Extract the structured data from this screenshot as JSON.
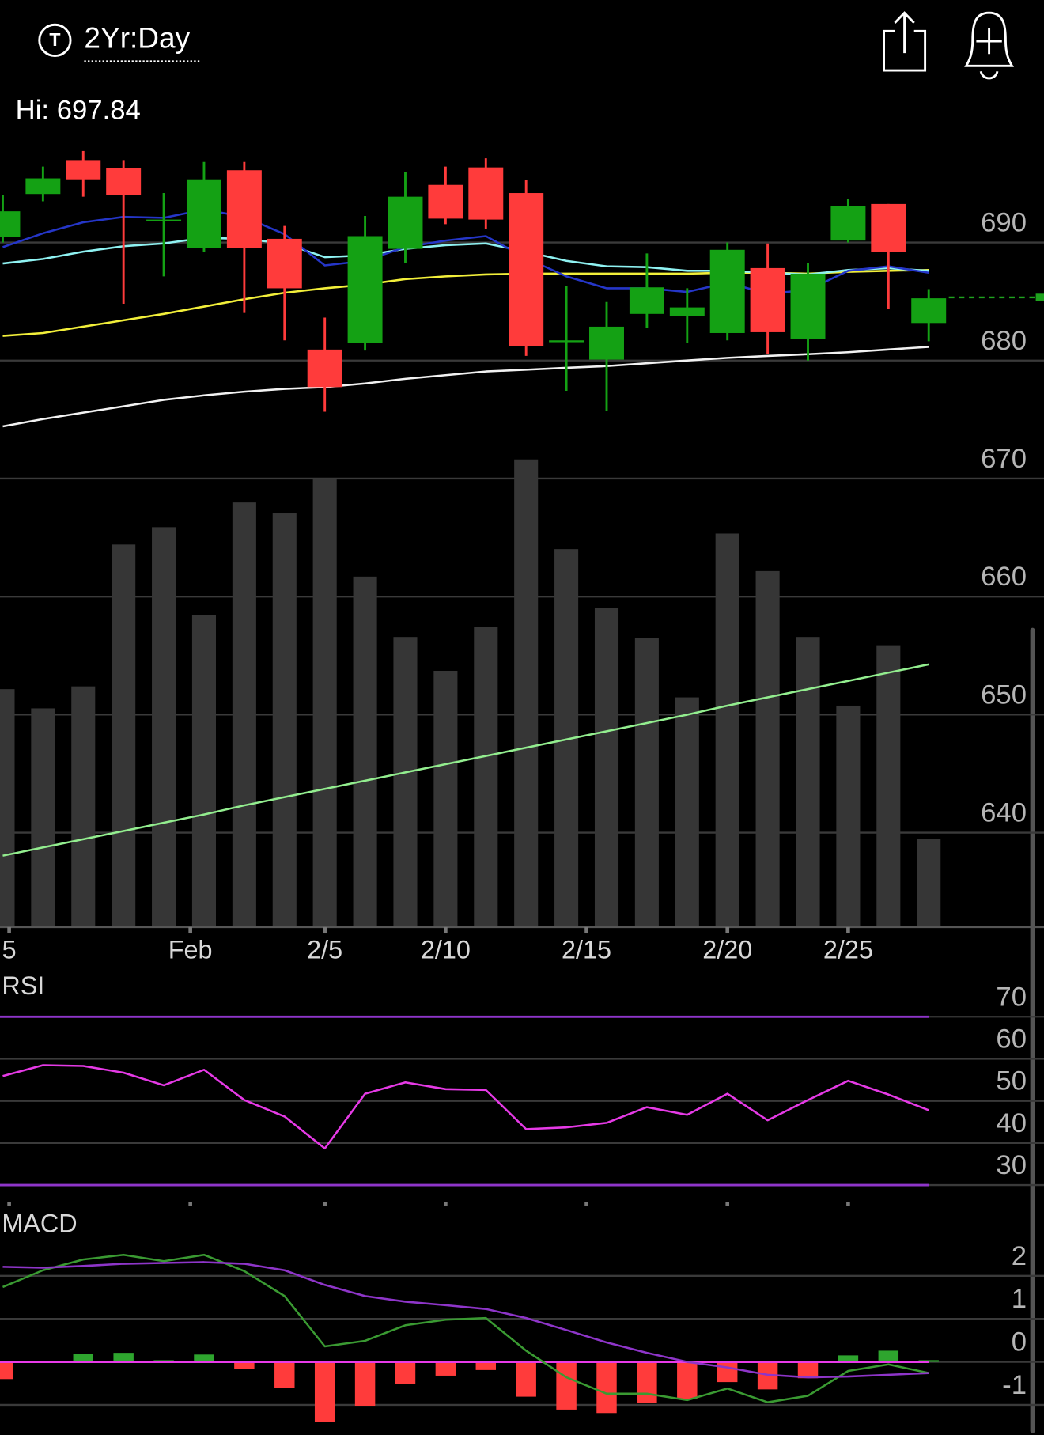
{
  "header": {
    "badge": "T",
    "range": "2Yr:Day",
    "high_label": "Hi: 697.84"
  },
  "chart_data": [
    {
      "type": "candlestick",
      "xlim": [
        -0.068,
        25.864
      ],
      "xticks": [
        {
          "value": 0.16,
          "label": "5"
        },
        {
          "value": 4.66,
          "label": "Feb"
        },
        {
          "value": 8,
          "label": "2/5"
        },
        {
          "value": 11,
          "label": "2/10"
        },
        {
          "value": 14.5,
          "label": "2/15"
        },
        {
          "value": 18,
          "label": "2/20"
        },
        {
          "value": 21,
          "label": "2/25"
        }
      ],
      "ylim": [
        632,
        700
      ],
      "yticks": [
        640,
        650,
        660,
        670,
        680,
        690
      ],
      "up_color": "#14a114",
      "down_color": "#ff3b3b",
      "open": [
        690.47,
        694.11,
        696.98,
        696.28,
        691.78,
        689.53,
        696.12,
        690.31,
        680.93,
        681.47,
        689.46,
        694.88,
        696.36,
        694.19,
        681.63,
        680.08,
        683.95,
        683.8,
        682.33,
        687.83,
        681.86,
        690.16,
        693.26,
        683.18
      ],
      "high": [
        694.0,
        696.43,
        697.75,
        696.98,
        694.19,
        696.82,
        696.82,
        691.4,
        683.64,
        692.25,
        695.97,
        696.43,
        697.13,
        695.27,
        686.28,
        684.96,
        689.07,
        686.12,
        690.0,
        689.92,
        688.29,
        693.72,
        693.26,
        686.05
      ],
      "low": [
        690.0,
        693.49,
        693.88,
        684.81,
        687.13,
        689.22,
        684.03,
        681.71,
        675.66,
        680.85,
        688.29,
        691.55,
        691.16,
        680.39,
        677.44,
        675.74,
        682.79,
        681.47,
        681.71,
        680.54,
        680.0,
        690.0,
        684.34,
        681.63
      ],
      "close": [
        692.64,
        695.43,
        695.35,
        694.03,
        691.94,
        695.35,
        689.53,
        686.12,
        677.75,
        690.54,
        693.88,
        692.02,
        691.94,
        681.24,
        681.71,
        682.87,
        686.2,
        684.5,
        689.38,
        682.4,
        687.36,
        693.1,
        689.22,
        685.27
      ],
      "series": [
        {
          "color": "#f2f2f2",
          "values": [
            674.42,
            675.04,
            675.58,
            676.12,
            676.67,
            677.05,
            677.36,
            677.6,
            677.75,
            678.06,
            678.45,
            678.76,
            679.07,
            679.22,
            679.38,
            679.53,
            679.77,
            680.0,
            680.23,
            680.39,
            680.54,
            680.7,
            680.93,
            681.16
          ]
        },
        {
          "color": "#f2ef3a",
          "values": [
            682.09,
            682.33,
            682.87,
            683.41,
            683.95,
            684.57,
            685.19,
            685.74,
            686.12,
            686.43,
            686.9,
            687.13,
            687.29,
            687.36,
            687.36,
            687.36,
            687.36,
            687.36,
            687.44,
            687.44,
            687.36,
            687.52,
            687.6,
            687.67
          ]
        },
        {
          "color": "#8ff2f2",
          "values": [
            688.22,
            688.6,
            689.22,
            689.69,
            689.92,
            690.39,
            690.31,
            689.92,
            688.76,
            688.91,
            689.46,
            689.77,
            689.92,
            689.22,
            688.45,
            687.98,
            687.91,
            687.6,
            687.6,
            687.44,
            687.29,
            687.67,
            687.83,
            687.6
          ]
        },
        {
          "color": "#2536c8",
          "values": [
            689.61,
            690.78,
            691.71,
            692.17,
            692.09,
            692.79,
            692.17,
            690.7,
            688.06,
            688.45,
            689.61,
            690.16,
            690.54,
            688.68,
            687.13,
            686.12,
            686.12,
            685.81,
            686.59,
            685.66,
            685.97,
            687.6,
            687.98,
            687.44
          ]
        }
      ],
      "volume": {
        "color": "#363636",
        "values": [
          260,
          239,
          263,
          418,
          437,
          341,
          464,
          452,
          490,
          383,
          317,
          280,
          328,
          511,
          413,
          349,
          316,
          251,
          430,
          389,
          317,
          242,
          308,
          96
        ],
        "ma": {
          "color": "#93ee8f",
          "values": [
            78,
            87,
            96,
            105,
            114,
            123,
            133,
            142,
            151,
            160,
            169,
            178,
            187,
            196,
            205,
            214,
            223,
            232,
            242,
            251,
            260,
            269,
            278,
            287
          ]
        }
      },
      "last_price": {
        "value": 685.35,
        "color": "#1ea31e"
      }
    },
    {
      "type": "line",
      "title": "RSI",
      "ylim": [
        26.5,
        80
      ],
      "yticks": [
        30,
        40,
        50,
        60,
        70
      ],
      "levels": [
        70,
        30
      ],
      "level_color": "#8e35c9",
      "series": [
        {
          "color": "#e63ae6",
          "values": [
            55.9,
            58.5,
            58.3,
            56.7,
            53.7,
            57.4,
            50.2,
            46.3,
            38.7,
            51.7,
            54.4,
            52.8,
            52.6,
            43.3,
            43.7,
            44.8,
            48.5,
            46.7,
            51.7,
            45.4,
            50.2,
            54.8,
            51.5,
            47.8
          ]
        }
      ]
    },
    {
      "type": "line",
      "title": "MACD",
      "ylim": [
        -1.7,
        3.47
      ],
      "yticks": [
        -1,
        0,
        1,
        2
      ],
      "zero_line_color": "#e83ae8",
      "up_color": "#2ea52e",
      "down_color": "#ff3b3b",
      "histogram": [
        -0.4,
        null,
        0.19,
        0.21,
        0.04,
        0.17,
        -0.17,
        -0.6,
        -1.4,
        -1.02,
        -0.51,
        -0.32,
        -0.19,
        -0.81,
        -1.11,
        -1.19,
        -0.96,
        -0.87,
        -0.47,
        -0.64,
        -0.38,
        0.15,
        0.26,
        0.04
      ],
      "series": [
        {
          "color": "#3a9a32",
          "values": [
            1.74,
            2.13,
            2.38,
            2.49,
            2.34,
            2.49,
            2.11,
            1.53,
            0.36,
            0.49,
            0.85,
            0.98,
            1.02,
            0.26,
            -0.36,
            -0.74,
            -0.74,
            -0.89,
            -0.62,
            -0.94,
            -0.79,
            -0.21,
            -0.06,
            -0.26
          ]
        },
        {
          "color": "#8e35c9",
          "values": [
            2.21,
            2.19,
            2.23,
            2.28,
            2.3,
            2.32,
            2.28,
            2.13,
            1.79,
            1.53,
            1.4,
            1.32,
            1.23,
            1.02,
            0.74,
            0.45,
            0.21,
            0.0,
            -0.13,
            -0.3,
            -0.36,
            -0.34,
            -0.3,
            -0.26
          ]
        }
      ]
    }
  ]
}
